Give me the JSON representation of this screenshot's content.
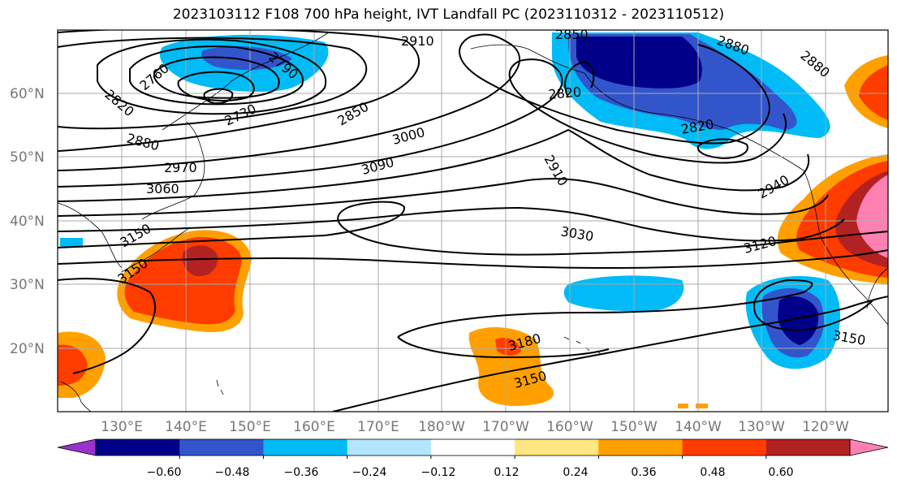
{
  "title": "2023103112 F108 700 hPa height, IVT Landfall PC (2023110312 - 2023110512)",
  "lat_labels": [
    "60°N",
    "50°N",
    "40°N",
    "30°N",
    "20°N"
  ],
  "lon_labels": [
    "130°E",
    "140°E",
    "150°E",
    "160°E",
    "170°E",
    "180°W",
    "170°W",
    "160°W",
    "150°W",
    "140°W",
    "130°W",
    "120°W"
  ],
  "contour_labels": [
    "2910",
    "2850",
    "2880",
    "2880",
    "2760",
    "2790",
    "2820",
    "2730",
    "2850",
    "2820",
    "2820",
    "2880",
    "3000",
    "2970",
    "3090",
    "2910",
    "3060",
    "2940",
    "3150",
    "3030",
    "3120",
    "3150",
    "3180",
    "3150",
    "3150"
  ],
  "colorbar": {
    "ticks": [
      "−0.60",
      "−0.48",
      "−0.36",
      "−0.24",
      "−0.12",
      "0.12",
      "0.24",
      "0.36",
      "0.48",
      "0.60"
    ],
    "colors": [
      "#9933cc",
      "#000088",
      "#3355cc",
      "#00bbf5",
      "#b3e5fc",
      "#ffffff",
      "#ffe680",
      "#ffa000",
      "#ff3c00",
      "#b22222",
      "#ff80b3"
    ]
  }
}
